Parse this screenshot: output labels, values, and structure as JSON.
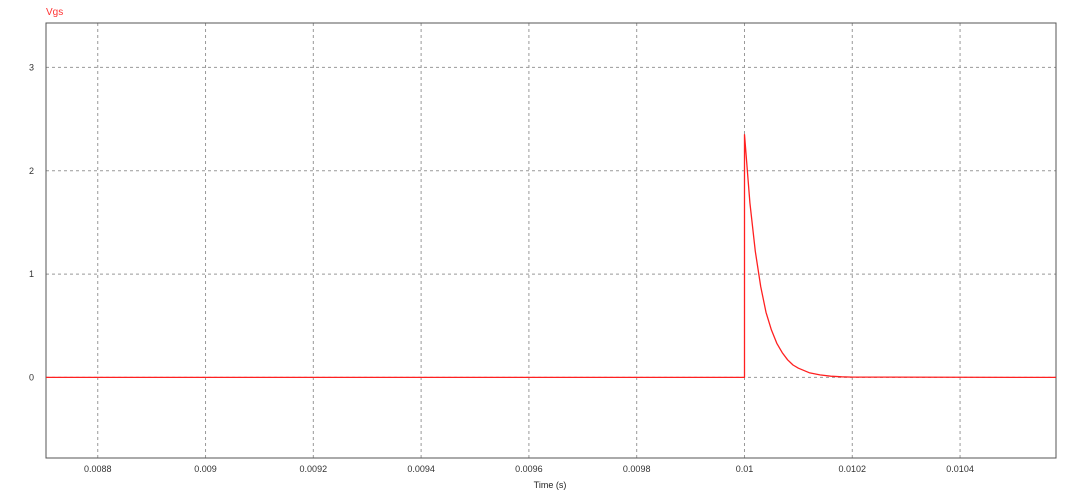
{
  "chart_data": {
    "type": "line",
    "title": "Vgs",
    "xlabel": "Time (s)",
    "ylabel": "",
    "xlim": [
      0.008704,
      0.010578
    ],
    "ylim": [
      -0.78,
      3.43
    ],
    "grid": true,
    "xticks": [
      0.0088,
      0.009,
      0.0092,
      0.0094,
      0.0096,
      0.0098,
      0.01,
      0.0102,
      0.0104
    ],
    "xtick_labels": [
      "0.0088",
      "0.009",
      "0.0092",
      "0.0094",
      "0.0096",
      "0.0098",
      "0.01",
      "0.0102",
      "0.0104"
    ],
    "yticks": [
      0,
      1,
      2,
      3
    ],
    "ytick_labels": [
      "0",
      "1",
      "2",
      "3"
    ],
    "series": [
      {
        "name": "Vgs",
        "color": "#ff2020",
        "x": [
          0.008704,
          0.01,
          0.01,
          0.01001,
          0.01002,
          0.01003,
          0.01004,
          0.01005,
          0.01006,
          0.01007,
          0.01008,
          0.01009,
          0.0101,
          0.01012,
          0.01014,
          0.01016,
          0.01018,
          0.0102,
          0.010578
        ],
        "y": [
          0,
          0,
          2.35,
          1.69,
          1.22,
          0.88,
          0.63,
          0.46,
          0.33,
          0.24,
          0.17,
          0.12,
          0.089,
          0.046,
          0.024,
          0.012,
          0.006,
          0.003,
          0
        ]
      }
    ]
  }
}
